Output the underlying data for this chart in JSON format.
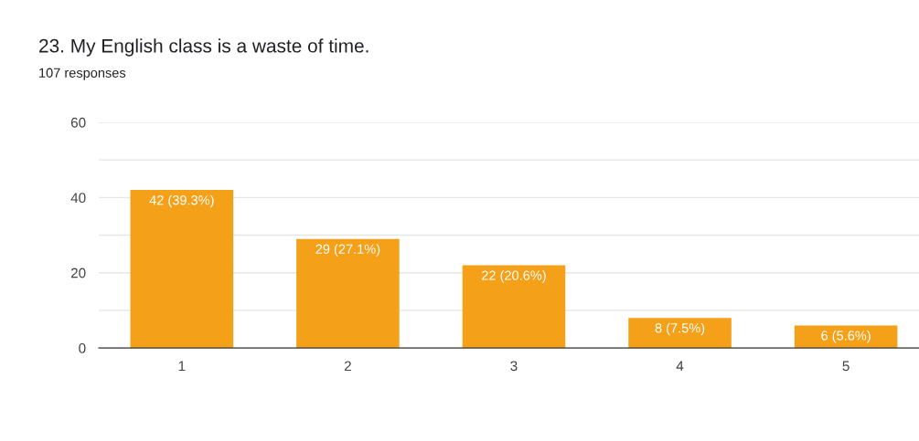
{
  "chart_data": {
    "type": "bar",
    "title": "23. My English class is a waste of time.",
    "subtitle": "107 responses",
    "categories": [
      "1",
      "2",
      "3",
      "4",
      "5"
    ],
    "values": [
      42,
      29,
      22,
      8,
      6
    ],
    "value_labels": [
      "42 (39.3%)",
      "29 (27.1%)",
      "22 (20.6%)",
      "8 (7.5%)",
      "6 (5.6%)"
    ],
    "color": "#f4a018",
    "ylim": [
      0,
      60
    ],
    "yticks": [
      0,
      {
        "value": 10,
        "label": null
      },
      20,
      {
        "value": 30,
        "label": null
      },
      40,
      {
        "value": 50,
        "label": null
      },
      60
    ],
    "grid": "y",
    "legend": false
  }
}
